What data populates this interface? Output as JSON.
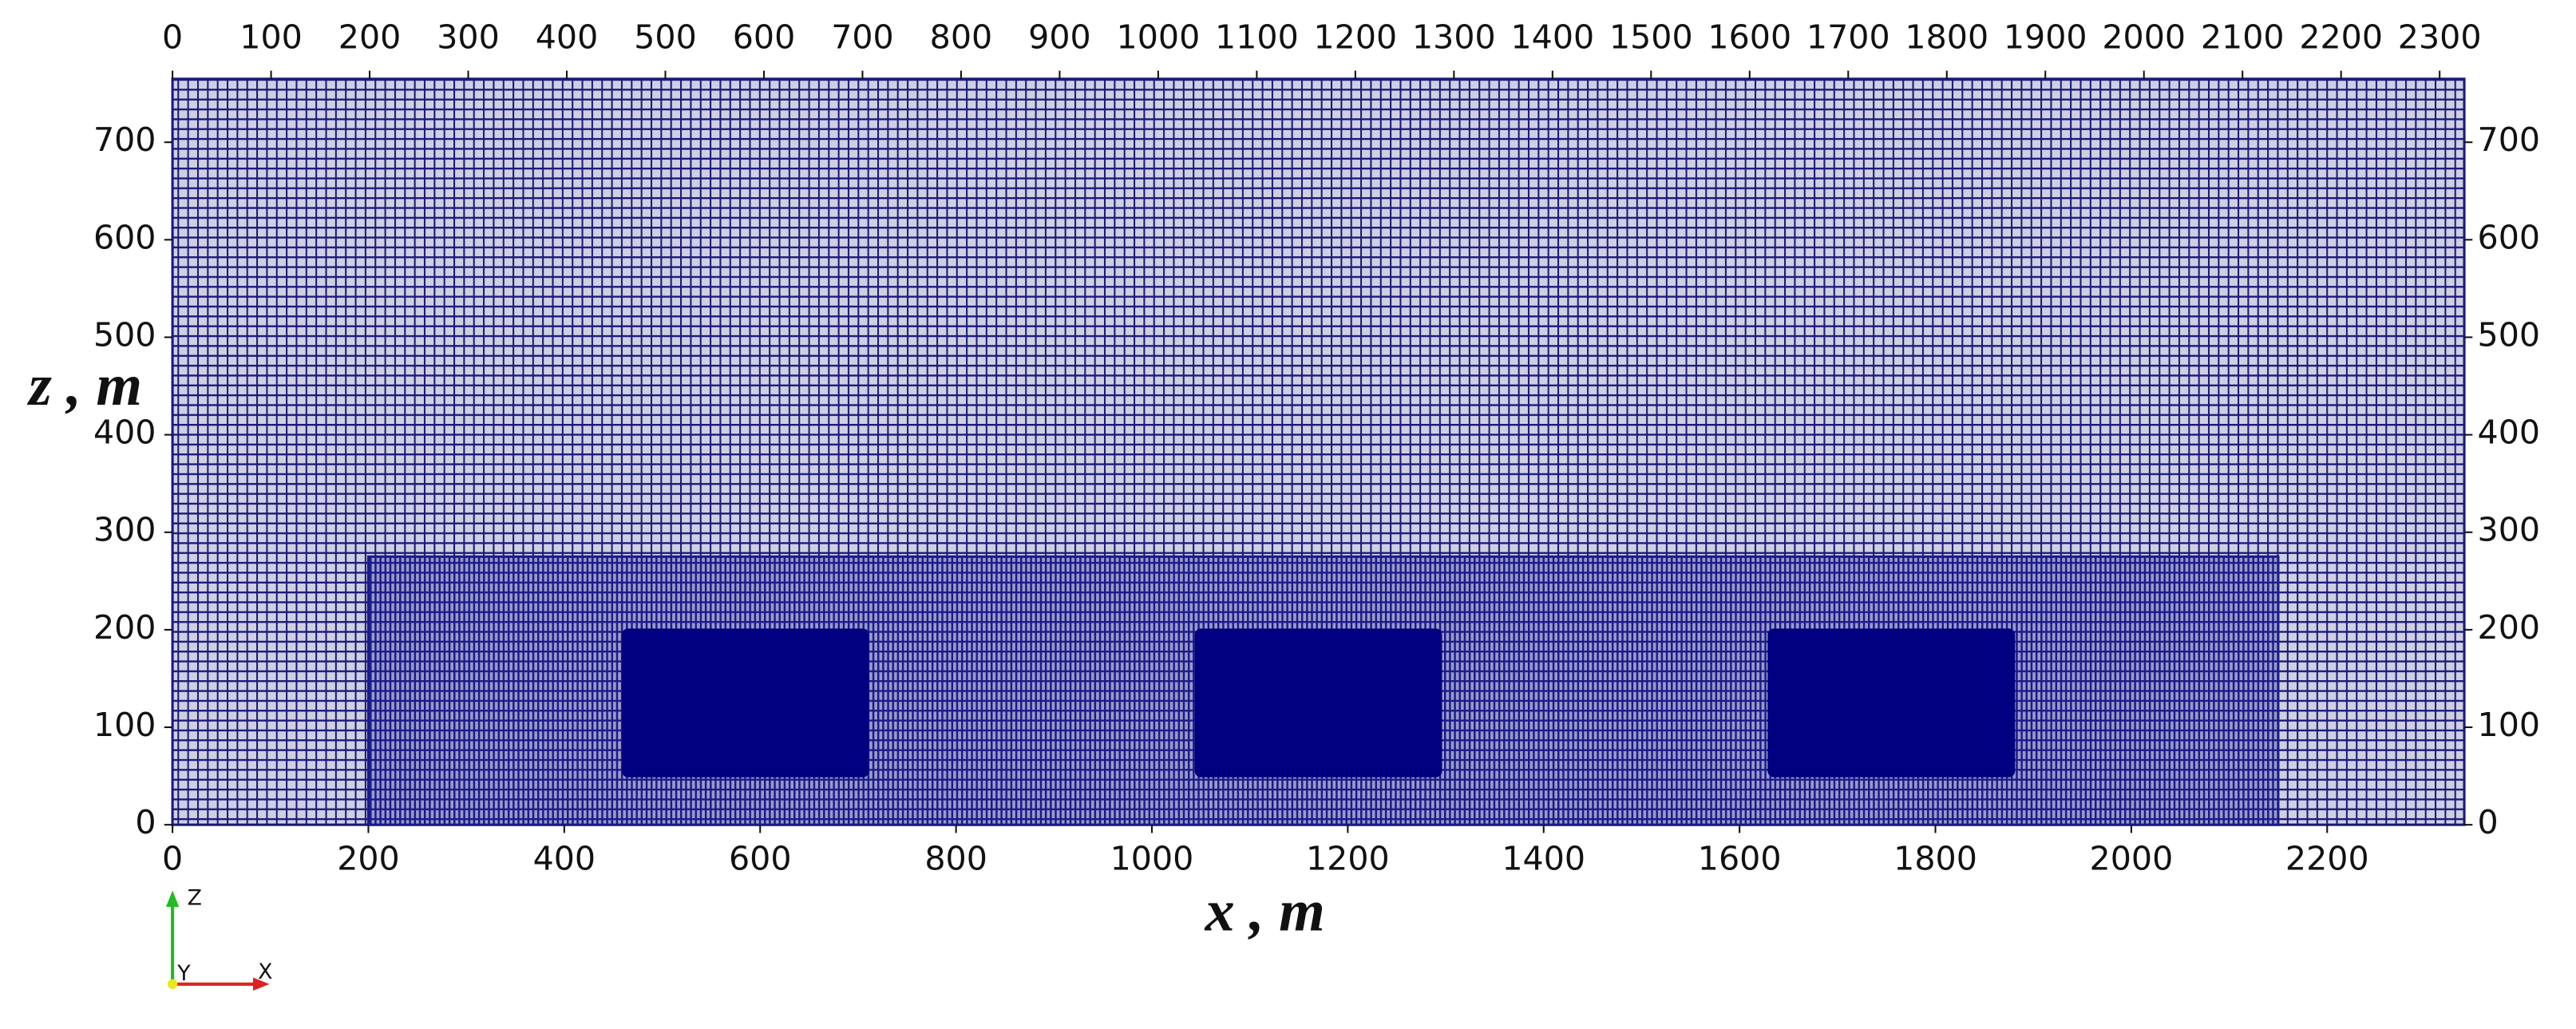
{
  "chart_data": {
    "type": "mesh",
    "xlabel": "x , m",
    "ylabel": "z , m",
    "xlim": [
      0,
      2340
    ],
    "ylim": [
      0,
      765
    ],
    "xticks": [
      0,
      200,
      400,
      600,
      800,
      1000,
      1200,
      1400,
      1600,
      1800,
      2000,
      2200
    ],
    "x2lim": [
      0,
      2325
    ],
    "x2ticks": [
      0,
      100,
      200,
      300,
      400,
      500,
      600,
      700,
      800,
      900,
      1000,
      1100,
      1200,
      1300,
      1400,
      1500,
      1600,
      1700,
      1800,
      1900,
      2000,
      2100,
      2200,
      2300
    ],
    "yticks": [
      0,
      100,
      200,
      300,
      400,
      500,
      600,
      700
    ],
    "color": "#1a1a7a",
    "regions": [
      {
        "xlim": [
          200,
          2150
        ],
        "ylim": [
          0,
          275
        ],
        "color": "#1a1a8a"
      },
      {
        "xlim": [
          460,
          710
        ],
        "ylim": [
          50,
          200
        ],
        "color": "#000080"
      },
      {
        "xlim": [
          1045,
          1295
        ],
        "ylim": [
          50,
          200
        ],
        "color": "#000080"
      },
      {
        "xlim": [
          1630,
          1880
        ],
        "ylim": [
          50,
          200
        ],
        "color": "#000080"
      }
    ],
    "axes_triad": [
      "Z",
      "Y",
      "X"
    ]
  }
}
